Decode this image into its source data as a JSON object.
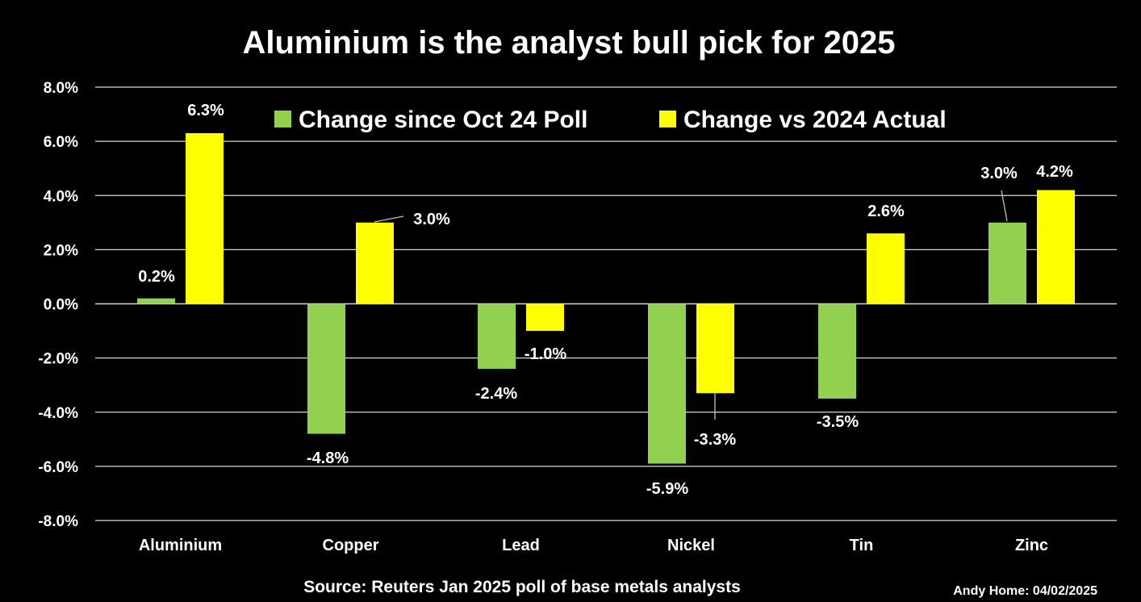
{
  "chart_data": {
    "type": "bar",
    "title": "Aluminium is the analyst bull pick for 2025",
    "categories": [
      "Aluminium",
      "Copper",
      "Lead",
      "Nickel",
      "Tin",
      "Zinc"
    ],
    "series": [
      {
        "name": "Change since Oct 24 Poll",
        "color": "#92D050",
        "values": [
          0.2,
          -4.8,
          -2.4,
          -5.9,
          -3.5,
          3.0
        ],
        "labels": [
          "0.2%",
          "-4.8%",
          "-2.4%",
          "-5.9%",
          "-3.5%",
          "3.0%"
        ]
      },
      {
        "name": "Change vs 2024 Actual",
        "color": "#FFFF00",
        "values": [
          6.3,
          3.0,
          -1.0,
          -3.3,
          2.6,
          4.2
        ],
        "labels": [
          "6.3%",
          "3.0%",
          "-1.0%",
          "-3.3%",
          "2.6%",
          "4.2%"
        ]
      }
    ],
    "ylim": [
      -8,
      8
    ],
    "yticks": [
      "8.0%",
      "6.0%",
      "4.0%",
      "2.0%",
      "0.0%",
      "-2.0%",
      "-4.0%",
      "-6.0%",
      "-8.0%"
    ],
    "grid": true,
    "legend": "top"
  },
  "footer": {
    "source": "Source: Reuters Jan 2025 poll of base metals analysts",
    "credit": "Andy Home: 04/02/2025"
  },
  "colors": {
    "background": "#000000",
    "text": "#FFFFFF",
    "grid": "#D9D9D9"
  }
}
